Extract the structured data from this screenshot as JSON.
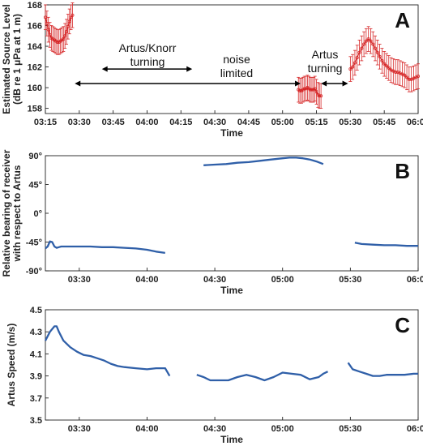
{
  "colors": {
    "red": "#d62728",
    "blue": "#2f5fa8",
    "axis": "#222222"
  },
  "chart_data": [
    {
      "type": "line",
      "panel_label": "A",
      "xlabel": "Time",
      "ylabel_lines": [
        "Estimated Source Level",
        "(dB re 1 μPa at 1 m)"
      ],
      "xlim": [
        "03:15",
        "06:00"
      ],
      "ylim": [
        157.5,
        168
      ],
      "yticks": [
        158,
        160,
        162,
        164,
        166,
        168
      ],
      "ytick_labels": [
        "158",
        "160",
        "162",
        "164",
        "166",
        "168"
      ],
      "xticks": [
        "03:15",
        "03:30",
        "03:45",
        "04:00",
        "04:15",
        "04:30",
        "04:45",
        "05:00",
        "05:15",
        "05:30",
        "05:45",
        "06:00"
      ],
      "error_bar": 1.2,
      "series": [
        {
          "segment": 1,
          "x": [
            "03:15",
            "03:15:40",
            "03:16:20",
            "03:17",
            "03:17:40",
            "03:18:20",
            "03:19",
            "03:19:40",
            "03:20:20",
            "03:21",
            "03:21:40",
            "03:22:20",
            "03:23",
            "03:23:40",
            "03:24:20",
            "03:25",
            "03:25:40",
            "03:26:20",
            "03:27"
          ],
          "y": [
            166.8,
            166.2,
            165.6,
            165.1,
            164.8,
            164.7,
            164.6,
            164.5,
            164.4,
            164.4,
            164.5,
            164.6,
            164.7,
            165.0,
            165.4,
            165.9,
            166.4,
            166.8,
            167.0
          ]
        },
        {
          "segment": 2,
          "x": [
            "05:07",
            "05:07:40",
            "05:08:20",
            "05:09",
            "05:09:40",
            "05:10:20",
            "05:11",
            "05:11:40",
            "05:12:20",
            "05:13",
            "05:13:40",
            "05:14:20",
            "05:15",
            "05:15:40",
            "05:16:20",
            "05:17"
          ],
          "y": [
            159.8,
            159.7,
            159.7,
            159.8,
            159.9,
            159.9,
            160.0,
            159.9,
            159.8,
            159.8,
            159.8,
            159.9,
            159.6,
            159.3,
            159.2,
            159.2
          ]
        },
        {
          "segment": 3,
          "x": [
            "05:30",
            "05:31",
            "05:32",
            "05:33",
            "05:34",
            "05:35",
            "05:36",
            "05:37",
            "05:38",
            "05:39",
            "05:40",
            "05:41",
            "05:42",
            "05:43",
            "05:44",
            "05:45",
            "05:46",
            "05:47",
            "05:48",
            "05:49",
            "05:50",
            "05:51",
            "05:52",
            "05:53",
            "05:54",
            "05:55",
            "05:56",
            "05:57",
            "05:58",
            "05:59",
            "06:00"
          ],
          "y": [
            161.8,
            162.0,
            162.4,
            162.9,
            163.4,
            163.8,
            164.2,
            164.5,
            164.7,
            164.5,
            164.2,
            163.8,
            163.4,
            163.0,
            162.6,
            162.3,
            162.1,
            161.9,
            161.7,
            161.6,
            161.5,
            161.5,
            161.4,
            161.3,
            161.2,
            161.0,
            160.8,
            160.8,
            160.9,
            161.0,
            161.1
          ]
        }
      ],
      "annotations": [
        {
          "text_lines": [
            "Artus/Knorr",
            "turning"
          ],
          "arrow_from": "03:40",
          "arrow_to": "04:20",
          "arrow_y": 161.8
        },
        {
          "text_lines": [
            "noise",
            "limited"
          ],
          "arrow_from": "03:28",
          "arrow_to": "05:08",
          "arrow_y": 160.4
        },
        {
          "text_lines": [
            "Artus",
            "turning"
          ],
          "arrow_from": "05:17",
          "arrow_to": "05:29",
          "arrow_y": 160.4
        }
      ]
    },
    {
      "type": "line",
      "panel_label": "B",
      "xlabel": "Time",
      "ylabel_lines": [
        "Relative bearing of receiver",
        "with respect to Artus"
      ],
      "xlim": [
        "03:15",
        "06:00"
      ],
      "ylim": [
        -90,
        90
      ],
      "yticks": [
        -90,
        -45,
        0,
        45,
        90
      ],
      "ytick_labels": [
        "-90°",
        "-45°",
        "0°",
        "45°",
        "90°"
      ],
      "xticks": [
        "03:30",
        "04:00",
        "04:30",
        "05:00",
        "05:30",
        "06:00"
      ],
      "series": [
        {
          "segment": 1,
          "x": [
            "03:15",
            "03:16",
            "03:17",
            "03:18",
            "03:19",
            "03:20",
            "03:21",
            "03:22",
            "03:25",
            "03:30",
            "03:35",
            "03:40",
            "03:45",
            "03:50",
            "03:55",
            "04:00",
            "04:04",
            "04:08"
          ],
          "y": [
            -55,
            -52,
            -44,
            -45,
            -52,
            -54,
            -53,
            -52,
            -52,
            -52,
            -52,
            -53,
            -53,
            -54,
            -55,
            -57,
            -60,
            -62
          ]
        },
        {
          "segment": 2,
          "x": [
            "04:25",
            "04:30",
            "04:35",
            "04:40",
            "04:45",
            "04:50",
            "04:55",
            "05:00",
            "05:03",
            "05:06",
            "05:09",
            "05:12",
            "05:15",
            "05:18"
          ],
          "y": [
            75,
            76,
            77,
            79,
            80,
            82,
            84,
            86,
            87,
            87,
            86,
            84,
            81,
            77
          ]
        },
        {
          "segment": 3,
          "x": [
            "05:32",
            "05:35",
            "05:40",
            "05:45",
            "05:50",
            "05:55",
            "06:00"
          ],
          "y": [
            -46,
            -48,
            -49,
            -50,
            -50,
            -51,
            -51
          ]
        }
      ]
    },
    {
      "type": "line",
      "panel_label": "C",
      "xlabel": "Time",
      "ylabel_lines": [
        "Artus Speed (m/s)"
      ],
      "xlim": [
        "03:15",
        "06:00"
      ],
      "ylim": [
        3.5,
        4.5
      ],
      "yticks": [
        3.5,
        3.7,
        3.9,
        4.1,
        4.3,
        4.5
      ],
      "ytick_labels": [
        "3.5",
        "3.7",
        "3.9",
        "4.1",
        "4.3",
        "4.5"
      ],
      "xticks": [
        "03:30",
        "04:00",
        "04:30",
        "05:00",
        "05:30",
        "06:00"
      ],
      "series": [
        {
          "segment": 1,
          "x": [
            "03:15",
            "03:17",
            "03:19",
            "03:20",
            "03:21",
            "03:23",
            "03:26",
            "03:29",
            "03:32",
            "03:35",
            "03:38",
            "03:41",
            "03:44",
            "03:47",
            "03:50",
            "03:55",
            "04:00",
            "04:04",
            "04:08",
            "04:10"
          ],
          "y": [
            4.22,
            4.3,
            4.35,
            4.35,
            4.3,
            4.22,
            4.16,
            4.12,
            4.09,
            4.08,
            4.06,
            4.04,
            4.01,
            3.99,
            3.98,
            3.97,
            3.96,
            3.97,
            3.97,
            3.9
          ]
        },
        {
          "segment": 2,
          "x": [
            "04:22",
            "04:25",
            "04:28",
            "04:32",
            "04:36",
            "04:40",
            "04:44",
            "04:48",
            "04:52",
            "04:56",
            "05:00",
            "05:04",
            "05:08",
            "05:12",
            "05:16",
            "05:18",
            "05:20"
          ],
          "y": [
            3.91,
            3.89,
            3.86,
            3.86,
            3.86,
            3.89,
            3.91,
            3.89,
            3.86,
            3.89,
            3.93,
            3.92,
            3.91,
            3.87,
            3.89,
            3.92,
            3.94
          ]
        },
        {
          "segment": 3,
          "x": [
            "05:29",
            "05:31",
            "05:34",
            "05:37",
            "05:40",
            "05:43",
            "05:46",
            "05:50",
            "05:54",
            "05:58",
            "06:00"
          ],
          "y": [
            4.02,
            3.96,
            3.94,
            3.92,
            3.9,
            3.9,
            3.91,
            3.91,
            3.91,
            3.92,
            3.92
          ]
        }
      ]
    }
  ]
}
